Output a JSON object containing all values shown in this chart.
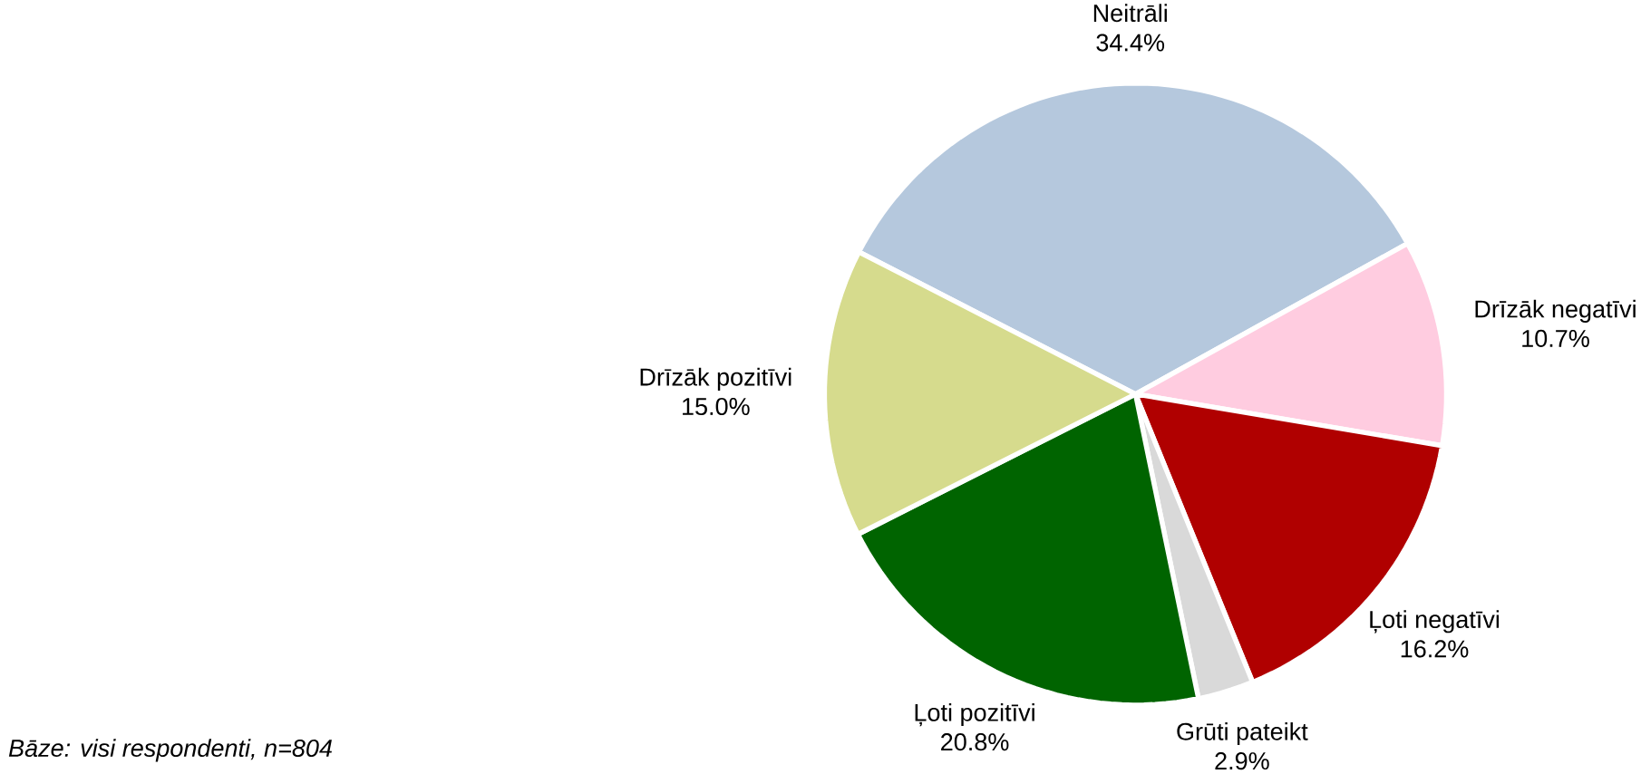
{
  "chart_data": {
    "type": "pie",
    "categories": [
      "Neitrāli",
      "Drīzāk negatīvi",
      "Ļoti negatīvi",
      "Grūti pateikt",
      "Ļoti pozitīvi",
      "Drīzāk pozitīvi"
    ],
    "values": [
      34.4,
      10.7,
      16.2,
      2.9,
      20.8,
      15.0
    ],
    "value_labels": [
      "34.4%",
      "10.7%",
      "16.2%",
      "2.9%",
      "20.8%",
      "15.0%"
    ],
    "colors": [
      "#b5c8dd",
      "#ffcce0",
      "#b00000",
      "#d9d9d9",
      "#006400",
      "#d6db8d"
    ],
    "annotations": [
      "*Bāze: visi respondenti, n=804*"
    ]
  }
}
